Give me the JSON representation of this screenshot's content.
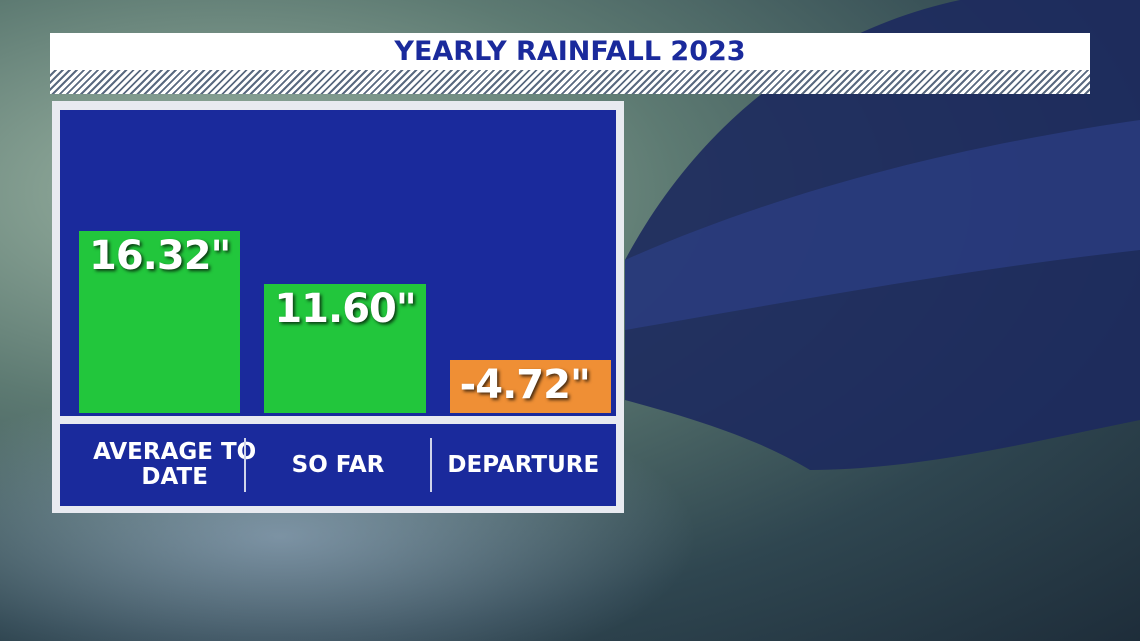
{
  "chart_data": {
    "type": "bar",
    "title": "YEARLY RAINFALL 2023",
    "categories": [
      "AVERAGE TO DATE",
      "SO FAR",
      "DEPARTURE"
    ],
    "values": [
      16.32,
      11.6,
      -4.72
    ],
    "value_labels": [
      "16.32\"",
      "11.60\"",
      "-4.72\""
    ],
    "colors": [
      "#22c63c",
      "#22c63c",
      "#ef8f35"
    ]
  }
}
